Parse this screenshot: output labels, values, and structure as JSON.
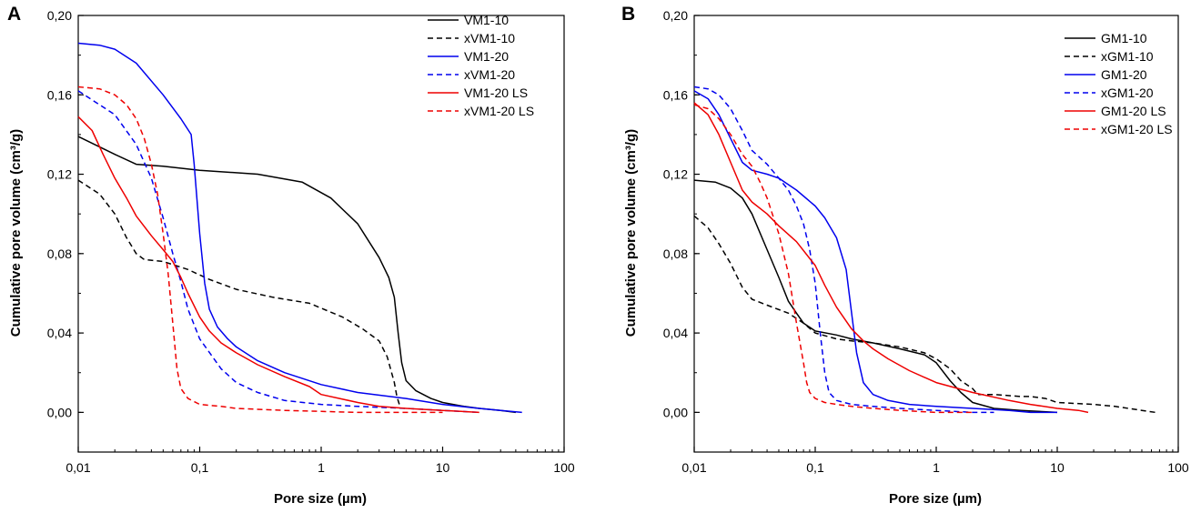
{
  "chart_data": [
    {
      "panel": "A",
      "type": "line",
      "xlabel": "Pore size (µm)",
      "ylabel": "Cumulative pore volume (cm³/g)",
      "x_scale": "log",
      "xlim": [
        0.01,
        100
      ],
      "ylim": [
        -0.02,
        0.2
      ],
      "x_ticks": [
        0.01,
        0.1,
        1,
        10,
        100
      ],
      "x_tick_labels": [
        "0,01",
        "0,1",
        "1",
        "10",
        "100"
      ],
      "y_ticks": [
        0.0,
        0.04,
        0.08,
        0.12,
        0.16,
        0.2
      ],
      "y_tick_labels": [
        "0,00",
        "0,04",
        "0,08",
        "0,12",
        "0,16",
        "0,20"
      ],
      "grid": false,
      "legend_position": "top-right",
      "series": [
        {
          "name": "VM1-10",
          "color": "#000000",
          "dash": "solid",
          "x": [
            0.01,
            0.02,
            0.03,
            0.05,
            0.1,
            0.3,
            0.7,
            1.2,
            2.0,
            3.0,
            3.6,
            4.0,
            4.3,
            4.6,
            5.0,
            6,
            8,
            10,
            15,
            20,
            30,
            40
          ],
          "y": [
            0.139,
            0.13,
            0.125,
            0.124,
            0.122,
            0.12,
            0.116,
            0.108,
            0.095,
            0.078,
            0.068,
            0.058,
            0.04,
            0.025,
            0.016,
            0.011,
            0.007,
            0.005,
            0.003,
            0.002,
            0.001,
            0.0
          ]
        },
        {
          "name": "xVM1-10",
          "color": "#000000",
          "dash": "dashed",
          "x": [
            0.01,
            0.015,
            0.02,
            0.025,
            0.03,
            0.035,
            0.05,
            0.08,
            0.12,
            0.2,
            0.4,
            0.8,
            1.5,
            2.2,
            3.0,
            3.5,
            4.0,
            4.2,
            4.4
          ],
          "y": [
            0.117,
            0.11,
            0.1,
            0.088,
            0.08,
            0.077,
            0.076,
            0.072,
            0.067,
            0.062,
            0.058,
            0.055,
            0.048,
            0.042,
            0.036,
            0.028,
            0.015,
            0.008,
            0.004
          ]
        },
        {
          "name": "VM1-20",
          "color": "#0000ee",
          "dash": "solid",
          "x": [
            0.01,
            0.015,
            0.02,
            0.03,
            0.05,
            0.07,
            0.085,
            0.09,
            0.1,
            0.11,
            0.12,
            0.14,
            0.17,
            0.2,
            0.3,
            0.5,
            1,
            2,
            5,
            10,
            20,
            30,
            45
          ],
          "y": [
            0.186,
            0.185,
            0.183,
            0.176,
            0.16,
            0.148,
            0.14,
            0.125,
            0.09,
            0.065,
            0.052,
            0.043,
            0.037,
            0.033,
            0.026,
            0.02,
            0.014,
            0.01,
            0.007,
            0.004,
            0.002,
            0.001,
            0.0
          ]
        },
        {
          "name": "xVM1-20",
          "color": "#0000ee",
          "dash": "dashed",
          "x": [
            0.01,
            0.02,
            0.03,
            0.04,
            0.05,
            0.06,
            0.07,
            0.08,
            0.1,
            0.15,
            0.2,
            0.3,
            0.5,
            1,
            2,
            5,
            10,
            20
          ],
          "y": [
            0.162,
            0.15,
            0.135,
            0.118,
            0.098,
            0.08,
            0.066,
            0.052,
            0.037,
            0.022,
            0.015,
            0.01,
            0.006,
            0.004,
            0.003,
            0.002,
            0.001,
            0.0
          ]
        },
        {
          "name": "VM1-20 LS",
          "color": "#ee0000",
          "dash": "solid",
          "x": [
            0.01,
            0.013,
            0.016,
            0.02,
            0.025,
            0.03,
            0.04,
            0.05,
            0.06,
            0.07,
            0.08,
            0.1,
            0.12,
            0.15,
            0.2,
            0.3,
            0.5,
            0.8,
            1,
            2,
            3,
            5,
            10,
            20
          ],
          "y": [
            0.149,
            0.142,
            0.13,
            0.118,
            0.108,
            0.099,
            0.089,
            0.082,
            0.076,
            0.068,
            0.06,
            0.048,
            0.041,
            0.035,
            0.03,
            0.024,
            0.018,
            0.013,
            0.009,
            0.005,
            0.003,
            0.002,
            0.001,
            0.0
          ]
        },
        {
          "name": "xVM1-20 LS",
          "color": "#ee0000",
          "dash": "dashed",
          "x": [
            0.01,
            0.015,
            0.02,
            0.025,
            0.03,
            0.035,
            0.04,
            0.045,
            0.05,
            0.055,
            0.06,
            0.065,
            0.07,
            0.08,
            0.1,
            0.15,
            0.2,
            0.5,
            1,
            2,
            5,
            10
          ],
          "y": [
            0.164,
            0.163,
            0.16,
            0.155,
            0.148,
            0.138,
            0.125,
            0.11,
            0.09,
            0.07,
            0.045,
            0.022,
            0.012,
            0.007,
            0.004,
            0.003,
            0.002,
            0.001,
            0.0005,
            0.0,
            0.0,
            0.0
          ]
        }
      ]
    },
    {
      "panel": "B",
      "type": "line",
      "xlabel": "Pore size (µm)",
      "ylabel": "Cumulative pore volume (cm³/g)",
      "x_scale": "log",
      "xlim": [
        0.01,
        100
      ],
      "ylim": [
        -0.02,
        0.2
      ],
      "x_ticks": [
        0.01,
        0.1,
        1,
        10,
        100
      ],
      "x_tick_labels": [
        "0,01",
        "0,1",
        "1",
        "10",
        "100"
      ],
      "y_ticks": [
        0.0,
        0.04,
        0.08,
        0.12,
        0.16,
        0.2
      ],
      "y_tick_labels": [
        "0,00",
        "0,04",
        "0,08",
        "0,12",
        "0,16",
        "0,20"
      ],
      "grid": false,
      "legend_position": "top-right",
      "series": [
        {
          "name": "GM1-10",
          "color": "#000000",
          "dash": "solid",
          "x": [
            0.01,
            0.015,
            0.02,
            0.025,
            0.03,
            0.04,
            0.05,
            0.06,
            0.07,
            0.08,
            0.1,
            0.15,
            0.2,
            0.3,
            0.5,
            0.8,
            1.0,
            1.3,
            1.6,
            2.0,
            3.0,
            5.0,
            10
          ],
          "y": [
            0.117,
            0.116,
            0.113,
            0.108,
            0.1,
            0.082,
            0.068,
            0.056,
            0.05,
            0.045,
            0.041,
            0.039,
            0.037,
            0.035,
            0.032,
            0.029,
            0.025,
            0.016,
            0.01,
            0.005,
            0.002,
            0.001,
            0.0
          ]
        },
        {
          "name": "xGM1-10",
          "color": "#000000",
          "dash": "dashed",
          "x": [
            0.01,
            0.013,
            0.016,
            0.02,
            0.025,
            0.03,
            0.04,
            0.06,
            0.08,
            0.1,
            0.15,
            0.2,
            0.3,
            0.5,
            0.8,
            1.0,
            1.3,
            1.6,
            2.0,
            2.2,
            3.0,
            5.0,
            6.0,
            8.0,
            10,
            20,
            30,
            50,
            65
          ],
          "y": [
            0.099,
            0.093,
            0.085,
            0.075,
            0.063,
            0.057,
            0.054,
            0.05,
            0.045,
            0.04,
            0.037,
            0.036,
            0.035,
            0.033,
            0.03,
            0.027,
            0.022,
            0.016,
            0.012,
            0.009,
            0.009,
            0.008,
            0.008,
            0.007,
            0.005,
            0.004,
            0.003,
            0.001,
            0.0
          ]
        },
        {
          "name": "GM1-20",
          "color": "#0000ee",
          "dash": "solid",
          "x": [
            0.01,
            0.013,
            0.016,
            0.02,
            0.025,
            0.03,
            0.04,
            0.05,
            0.07,
            0.1,
            0.12,
            0.15,
            0.18,
            0.2,
            0.22,
            0.25,
            0.3,
            0.4,
            0.6,
            1,
            2,
            4,
            6,
            10
          ],
          "y": [
            0.162,
            0.158,
            0.15,
            0.138,
            0.126,
            0.122,
            0.12,
            0.118,
            0.112,
            0.104,
            0.098,
            0.088,
            0.072,
            0.05,
            0.03,
            0.015,
            0.009,
            0.006,
            0.004,
            0.003,
            0.002,
            0.001,
            0.0,
            0.0
          ]
        },
        {
          "name": "xGM1-20",
          "color": "#0000ee",
          "dash": "dashed",
          "x": [
            0.01,
            0.013,
            0.016,
            0.02,
            0.025,
            0.03,
            0.04,
            0.05,
            0.06,
            0.07,
            0.08,
            0.09,
            0.1,
            0.11,
            0.12,
            0.13,
            0.15,
            0.2,
            0.3,
            0.5,
            1,
            2,
            3
          ],
          "y": [
            0.164,
            0.163,
            0.16,
            0.153,
            0.142,
            0.132,
            0.125,
            0.118,
            0.112,
            0.104,
            0.095,
            0.082,
            0.065,
            0.04,
            0.02,
            0.01,
            0.006,
            0.004,
            0.003,
            0.002,
            0.001,
            0.0,
            0.0
          ]
        },
        {
          "name": "GM1-20 LS",
          "color": "#ee0000",
          "dash": "solid",
          "x": [
            0.01,
            0.013,
            0.016,
            0.02,
            0.025,
            0.03,
            0.04,
            0.05,
            0.07,
            0.1,
            0.12,
            0.15,
            0.2,
            0.25,
            0.3,
            0.4,
            0.6,
            1,
            2,
            4,
            6,
            10,
            15,
            18
          ],
          "y": [
            0.156,
            0.15,
            0.14,
            0.126,
            0.112,
            0.106,
            0.1,
            0.094,
            0.086,
            0.074,
            0.064,
            0.053,
            0.042,
            0.036,
            0.032,
            0.027,
            0.021,
            0.015,
            0.01,
            0.006,
            0.004,
            0.002,
            0.001,
            0.0
          ]
        },
        {
          "name": "xGM1-20 LS",
          "color": "#ee0000",
          "dash": "dashed",
          "x": [
            0.01,
            0.013,
            0.016,
            0.02,
            0.025,
            0.03,
            0.035,
            0.04,
            0.05,
            0.06,
            0.07,
            0.08,
            0.085,
            0.09,
            0.1,
            0.12,
            0.15,
            0.2,
            0.3,
            0.5,
            1,
            2
          ],
          "y": [
            0.155,
            0.153,
            0.148,
            0.14,
            0.13,
            0.124,
            0.116,
            0.108,
            0.09,
            0.07,
            0.045,
            0.025,
            0.015,
            0.01,
            0.007,
            0.005,
            0.004,
            0.003,
            0.002,
            0.001,
            0.0,
            0.0
          ]
        }
      ]
    }
  ]
}
